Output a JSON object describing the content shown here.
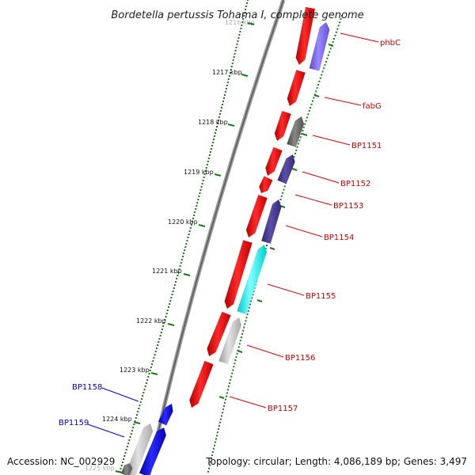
{
  "title": "Bordetella pertussis Tohama I, complete genome",
  "accession_text": "Accession: NC_002929",
  "topology_text": "Topology: circular; Length: 4,086,189 bp; Genes: 3,497",
  "colors": {
    "red": "#ff0000",
    "blue": "#0000ee",
    "slate": "#4a3f8f",
    "lavender": "#7b68ee",
    "cyan": "#00ffff",
    "gray": "#666666",
    "light_gray": "#bdbdbd",
    "backbone": "#888888",
    "tick_green": "#1a7a1a"
  },
  "tick_labels": [
    "1216 kbp",
    "1217 kbp",
    "1218 kbp",
    "1219 kbp",
    "1220 kbp",
    "1221 kbp",
    "1222 kbp",
    "1223 kbp",
    "1224 kbp",
    "1225 kbp"
  ],
  "gene_labels_right": [
    "phbC",
    "fabG",
    "BP1151",
    "BP1152",
    "BP1153",
    "BP1154",
    "BP1155",
    "BP1156",
    "BP1157"
  ],
  "gene_labels_left": [
    "BP1158",
    "BP1159"
  ]
}
